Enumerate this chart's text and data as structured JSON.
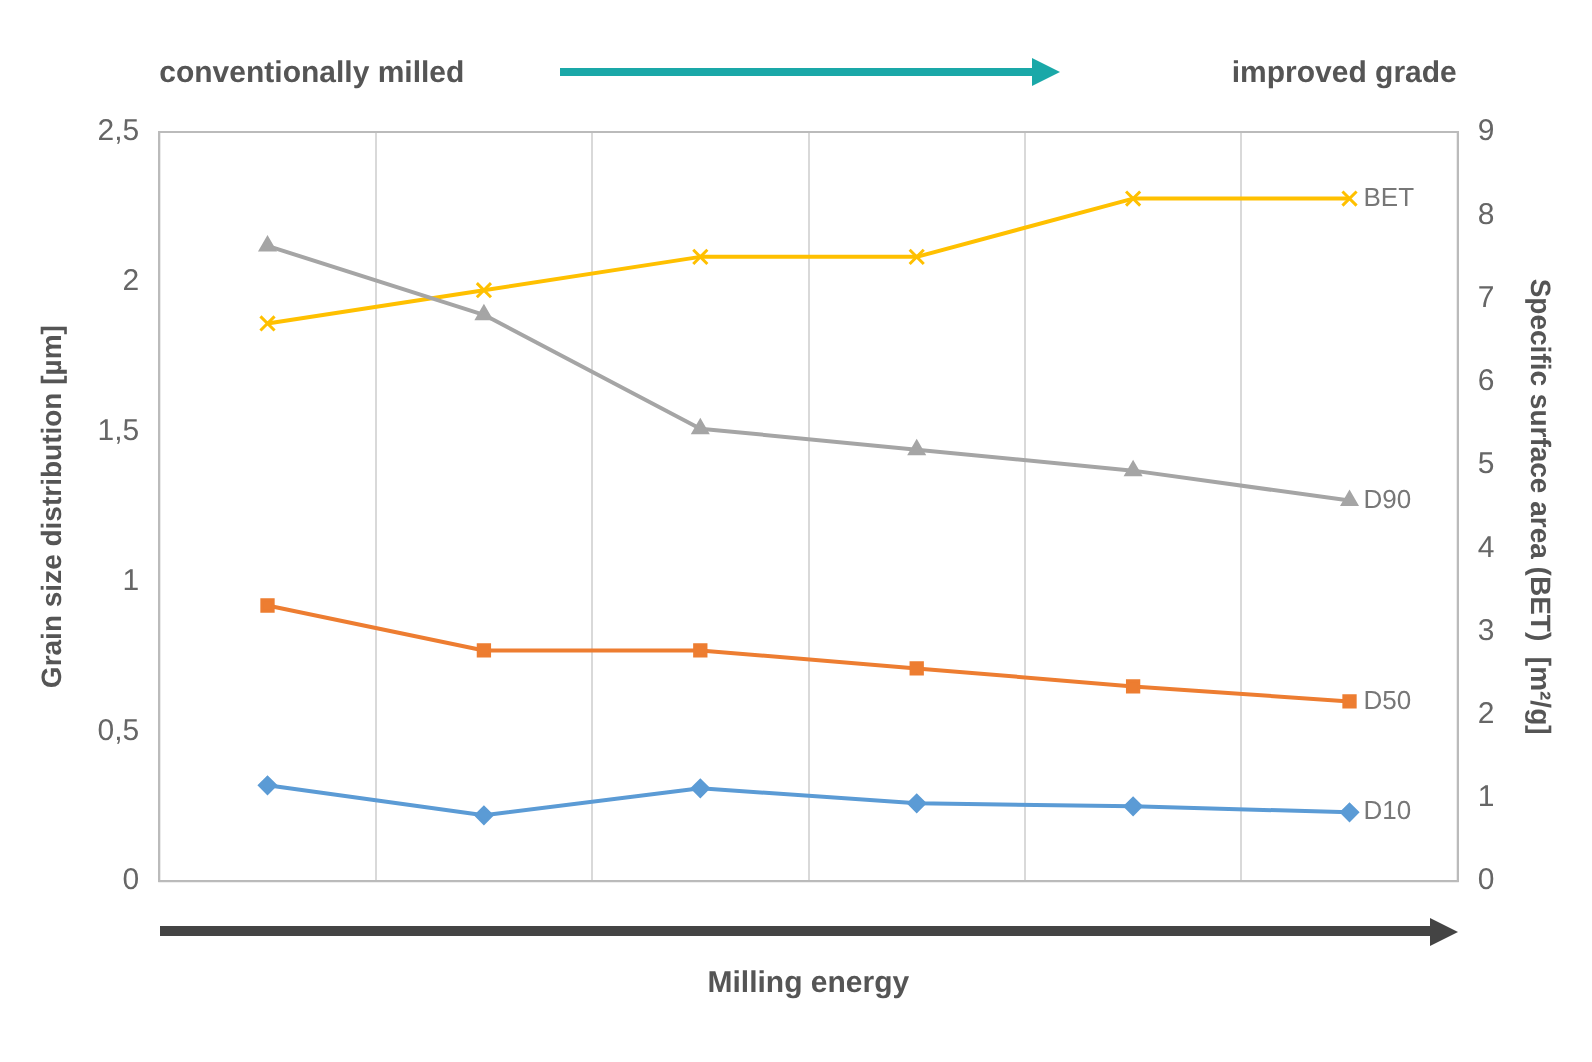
{
  "chart_data": {
    "type": "line",
    "xlabel": "Milling energy",
    "ylabel": "Grain size distribution [µm]",
    "y2label": "Specific surface area (BET)  [m²/g]",
    "annotations": [
      "conventionally milled",
      "improved grade"
    ],
    "categories": [
      null,
      null,
      null,
      null,
      null,
      null
    ],
    "series": [
      {
        "name": "D10",
        "color": "#5b9bd5",
        "marker": "diamond",
        "values": [
          0.32,
          0.22,
          0.31,
          0.26,
          0.25,
          0.23
        ]
      },
      {
        "name": "D50",
        "color": "#ed7d31",
        "marker": "square",
        "values": [
          0.92,
          0.77,
          0.77,
          0.71,
          0.65,
          0.6
        ]
      },
      {
        "name": "D90",
        "color": "#a5a5a5",
        "marker": "triangle",
        "values": [
          2.12,
          1.89,
          1.51,
          1.44,
          1.37,
          1.27
        ]
      },
      {
        "name": "BET",
        "color": "#ffc000",
        "marker": "cross",
        "axis": "y2",
        "values": [
          6.7,
          7.1,
          7.5,
          7.5,
          8.2,
          8.2
        ]
      }
    ],
    "ylim": [
      0,
      2.5
    ],
    "yticks": [
      0,
      {
        "value": 0.5,
        "label": "0,5"
      },
      1,
      {
        "value": 1.5,
        "label": "1,5"
      },
      2,
      {
        "value": 2.5,
        "label": "2,5"
      }
    ],
    "y2lim": [
      0,
      9
    ],
    "y2ticks": [
      0,
      1,
      2,
      3,
      4,
      5,
      6,
      7,
      8,
      9
    ],
    "grid": "x",
    "legend": false,
    "line_style": "solid"
  }
}
